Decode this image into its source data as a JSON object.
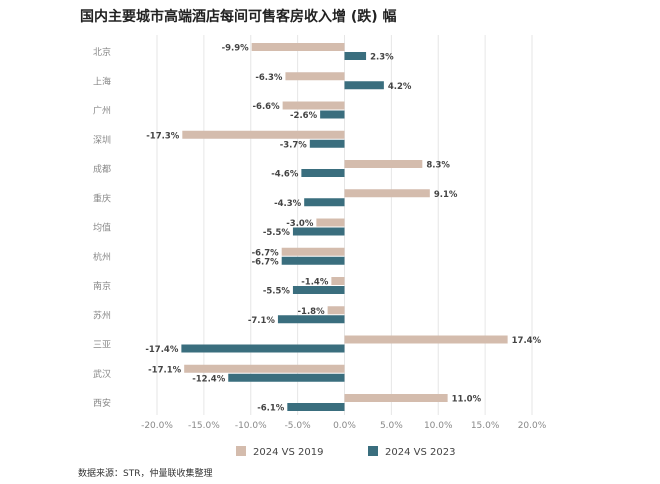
{
  "title": "国内主要城市高端酒店每间可售客房收入增 (跌) 幅",
  "source": "数据来源：STR，仲量联收集整理",
  "chart_data": {
    "type": "bar",
    "orientation": "horizontal",
    "title": "国内主要城市高端酒店每间可售客房收入增 (跌) 幅",
    "categories": [
      "北京",
      "上海",
      "广州",
      "深圳",
      "成都",
      "重庆",
      "均值",
      "杭州",
      "南京",
      "苏州",
      "三亚",
      "武汉",
      "西安"
    ],
    "series": [
      {
        "name": "2024 VS 2019",
        "color": "#d4bcad",
        "values": [
          -9.9,
          -6.3,
          -6.6,
          -17.3,
          8.3,
          9.1,
          -3.0,
          -6.7,
          -1.4,
          -1.8,
          17.4,
          -17.1,
          11.0
        ]
      },
      {
        "name": "2024 VS 2023",
        "color": "#3a6e7e",
        "values": [
          2.3,
          4.2,
          -2.6,
          -3.7,
          -4.6,
          -4.3,
          -5.5,
          -6.7,
          -5.5,
          -7.1,
          -17.4,
          -12.4,
          -6.1
        ]
      }
    ],
    "xlim": [
      -20,
      20
    ],
    "xticks": [
      "-20.0%",
      "-15.0%",
      "-10.0%",
      "-5.0%",
      "0.0%",
      "5.0%",
      "10.0%",
      "15.0%",
      "20.0%"
    ],
    "xtick_values": [
      -20,
      -15,
      -10,
      -5,
      0,
      5,
      10,
      15,
      20
    ],
    "grid": "vertical",
    "legend": "bottom"
  }
}
